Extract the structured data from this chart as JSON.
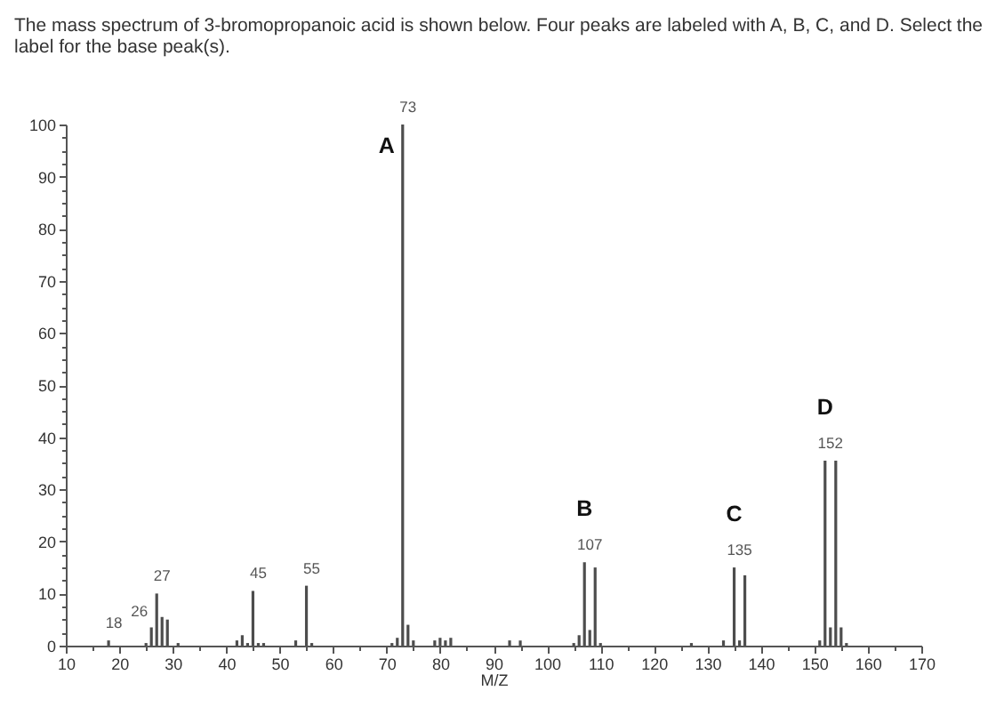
{
  "chart_data": {
    "type": "bar",
    "title": "The mass spectrum of 3-bromopropanoic acid is shown below. Four peaks are labeled with A, B, C, and D. Select the label for the base peak(s).",
    "xlabel": "M/Z",
    "x": [
      18,
      25,
      26,
      27,
      28,
      29,
      31,
      42,
      43,
      44,
      45,
      46,
      47,
      53,
      55,
      56,
      71,
      72,
      73,
      74,
      75,
      79,
      80,
      81,
      82,
      93,
      95,
      105,
      106,
      107,
      108,
      109,
      110,
      127,
      133,
      135,
      136,
      137,
      151,
      152,
      153,
      154,
      155,
      156
    ],
    "values": [
      1,
      0.5,
      3.5,
      10,
      5.5,
      5,
      0.5,
      1,
      2,
      0.5,
      10.5,
      0.5,
      0.5,
      1,
      11.5,
      0.5,
      0.5,
      1.5,
      100,
      4,
      1,
      1,
      1.5,
      1,
      1.5,
      1,
      1,
      0.5,
      2,
      16,
      3,
      15,
      0.5,
      0.5,
      1,
      15,
      1,
      13.5,
      1,
      35.5,
      3.5,
      35.5,
      3.5,
      0.5
    ],
    "color": "#4d4d4d",
    "annotations": [
      {
        "text": "18",
        "x": 18,
        "y": 1
      },
      {
        "text": "26",
        "x": 26,
        "y": 3.5
      },
      {
        "text": "27",
        "x": 27,
        "y": 10
      },
      {
        "text": "45",
        "x": 45,
        "y": 10.5
      },
      {
        "text": "55",
        "x": 55,
        "y": 11.5
      },
      {
        "text": "73",
        "x": 73,
        "y": 100
      },
      {
        "text": "A",
        "x": 73,
        "y": 100
      },
      {
        "text": "107",
        "x": 107,
        "y": 16
      },
      {
        "text": "B",
        "x": 107,
        "y": 16
      },
      {
        "text": "135",
        "x": 135,
        "y": 15
      },
      {
        "text": "C",
        "x": 135,
        "y": 15
      },
      {
        "text": "152",
        "x": 152,
        "y": 35.5
      },
      {
        "text": "D",
        "x": 152,
        "y": 35.5
      }
    ],
    "xlim": [
      10,
      170
    ],
    "xticks": [
      10,
      {
        "value": 15,
        "label": null
      },
      20,
      {
        "value": 25,
        "label": null
      },
      30,
      {
        "value": 35,
        "label": null
      },
      40,
      {
        "value": 45,
        "label": null
      },
      50,
      {
        "value": 55,
        "label": null
      },
      60,
      {
        "value": 65,
        "label": null
      },
      70,
      {
        "value": 75,
        "label": null
      },
      80,
      {
        "value": 85,
        "label": null
      },
      90,
      {
        "value": 95,
        "label": null
      },
      100,
      {
        "value": 105,
        "label": null
      },
      110,
      {
        "value": 115,
        "label": null
      },
      120,
      {
        "value": 125,
        "label": null
      },
      130,
      {
        "value": 135,
        "label": null
      },
      140,
      {
        "value": 145,
        "label": null
      },
      150,
      {
        "value": 155,
        "label": null
      },
      160,
      {
        "value": 165,
        "label": null
      },
      170
    ],
    "ylim": [
      0,
      100
    ],
    "yticks": [
      0,
      {
        "value": 2.5,
        "label": null
      },
      {
        "value": 5,
        "label": null
      },
      {
        "value": 7.5,
        "label": null
      },
      10,
      {
        "value": 12.5,
        "label": null
      },
      {
        "value": 15,
        "label": null
      },
      {
        "value": 17.5,
        "label": null
      },
      20,
      {
        "value": 22.5,
        "label": null
      },
      {
        "value": 25,
        "label": null
      },
      {
        "value": 27.5,
        "label": null
      },
      30,
      {
        "value": 32.5,
        "label": null
      },
      {
        "value": 35,
        "label": null
      },
      {
        "value": 37.5,
        "label": null
      },
      40,
      {
        "value": 42.5,
        "label": null
      },
      {
        "value": 45,
        "label": null
      },
      {
        "value": 47.5,
        "label": null
      },
      50,
      {
        "value": 52.5,
        "label": null
      },
      {
        "value": 55,
        "label": null
      },
      {
        "value": 57.5,
        "label": null
      },
      60,
      {
        "value": 62.5,
        "label": null
      },
      {
        "value": 65,
        "label": null
      },
      {
        "value": 67.5,
        "label": null
      },
      70,
      {
        "value": 72.5,
        "label": null
      },
      {
        "value": 75,
        "label": null
      },
      {
        "value": 77.5,
        "label": null
      },
      80,
      {
        "value": 82.5,
        "label": null
      },
      {
        "value": 85,
        "label": null
      },
      {
        "value": 87.5,
        "label": null
      },
      90,
      {
        "value": 92.5,
        "label": null
      },
      {
        "value": 95,
        "label": null
      },
      {
        "value": 97.5,
        "label": null
      },
      100
    ],
    "grid": false
  }
}
